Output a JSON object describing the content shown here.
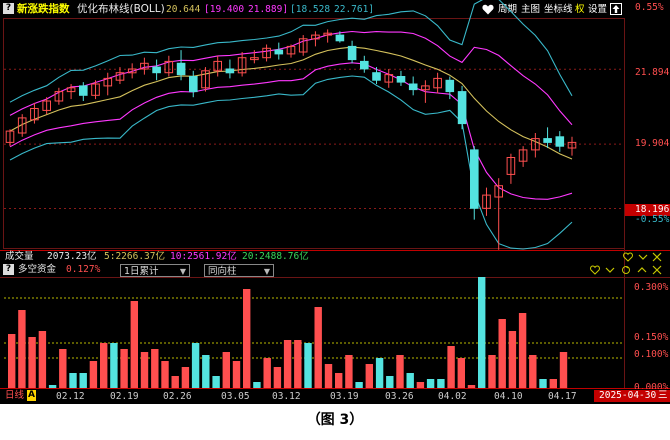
{
  "header": {
    "index_name": "新涨跌指数",
    "indicator_name": "优化布林线(BOLL)",
    "val_mid": "20.644",
    "val_upper_bracket": "[19.400",
    "val_upper2": "21.889]",
    "val_lower_bracket": "[18.528",
    "val_lower2": "22.761]",
    "btn_cycle": "周期",
    "btn_main": "主图",
    "btn_coord": "坐标线",
    "btn_right": "权",
    "btn_settings": "设置",
    "icon_names": [
      "heart-icon",
      "share-up-icon"
    ]
  },
  "price_axis": {
    "top_pct": "0.55%",
    "labels": [
      "21.894",
      "19.904"
    ],
    "last_value": "18.196",
    "last_pct": "-0.55%"
  },
  "volume_row": {
    "label": "成交量",
    "total": "2073.23亿",
    "ma5": "5:2266.37亿",
    "ma10": "10:2561.92亿",
    "ma20": "20:2488.76亿"
  },
  "sub_header": {
    "icon": "?",
    "label": "多空资金",
    "value": "0.127%",
    "dropdown1": "1日累计",
    "dropdown2": "同向柱"
  },
  "sub_axis": [
    "0.300%",
    "0.150%",
    "0.100%",
    "0.000%"
  ],
  "footer": {
    "period_tab": "日线",
    "dates": [
      "02.12",
      "02.19",
      "02.26",
      "03.05",
      "03.12",
      "03.19",
      "03.26",
      "04.02",
      "04.10",
      "04.17"
    ],
    "current_date": "2025-04-30",
    "current_sep": "三"
  },
  "colors": {
    "up": "#ff4f4f",
    "down": "#54e3e0",
    "mid_line": "#d4c15c",
    "inner_band": "#ff38ff",
    "outer_band": "#39b8c9",
    "grid": "#8b1a1a",
    "yellow_dash": "#b8b800"
  },
  "chart_data": [
    {
      "type": "candlestick",
      "title": "",
      "series": [
        {
          "name": "新涨跌指数",
          "ohlc": [
            [
              19.95,
              20.3,
              19.85,
              20.25
            ],
            [
              20.2,
              20.7,
              20.1,
              20.6
            ],
            [
              20.55,
              21.0,
              20.45,
              20.85
            ],
            [
              20.8,
              21.15,
              20.7,
              21.05
            ],
            [
              21.05,
              21.4,
              20.95,
              21.3
            ],
            [
              21.3,
              21.5,
              21.1,
              21.4
            ],
            [
              21.45,
              21.55,
              21.05,
              21.2
            ],
            [
              21.2,
              21.6,
              21.1,
              21.5
            ],
            [
              21.45,
              21.8,
              21.2,
              21.65
            ],
            [
              21.6,
              21.95,
              21.5,
              21.8
            ],
            [
              21.8,
              22.05,
              21.65,
              21.9
            ],
            [
              21.9,
              22.2,
              21.75,
              22.05
            ],
            [
              21.95,
              22.15,
              21.6,
              21.8
            ],
            [
              21.8,
              22.25,
              21.7,
              22.1
            ],
            [
              22.05,
              22.4,
              21.6,
              21.75
            ],
            [
              21.7,
              21.85,
              21.15,
              21.3
            ],
            [
              21.4,
              21.95,
              21.3,
              21.85
            ],
            [
              21.85,
              22.25,
              21.7,
              22.1
            ],
            [
              21.9,
              22.15,
              21.65,
              21.8
            ],
            [
              21.8,
              22.35,
              21.7,
              22.2
            ],
            [
              22.15,
              22.4,
              22.05,
              22.2
            ],
            [
              22.2,
              22.55,
              22.1,
              22.45
            ],
            [
              22.4,
              22.6,
              22.15,
              22.3
            ],
            [
              22.3,
              22.55,
              22.2,
              22.5
            ],
            [
              22.35,
              22.8,
              22.25,
              22.7
            ],
            [
              22.7,
              22.9,
              22.5,
              22.8
            ],
            [
              22.8,
              22.95,
              22.6,
              22.85
            ],
            [
              22.8,
              22.9,
              22.6,
              22.65
            ],
            [
              22.5,
              22.65,
              22.05,
              22.15
            ],
            [
              22.1,
              22.25,
              21.8,
              21.9
            ],
            [
              21.8,
              21.95,
              21.5,
              21.6
            ],
            [
              21.55,
              21.9,
              21.4,
              21.75
            ],
            [
              21.7,
              21.85,
              21.45,
              21.55
            ],
            [
              21.5,
              21.7,
              21.2,
              21.35
            ],
            [
              21.35,
              21.6,
              21.0,
              21.45
            ],
            [
              21.4,
              21.8,
              21.25,
              21.65
            ],
            [
              21.6,
              21.7,
              21.1,
              21.3
            ],
            [
              21.3,
              21.45,
              20.3,
              20.45
            ],
            [
              19.75,
              19.85,
              17.9,
              18.2
            ],
            [
              18.2,
              18.75,
              18.0,
              18.55
            ],
            [
              18.5,
              19.0,
              17.1,
              18.8
            ],
            [
              19.1,
              19.65,
              18.85,
              19.55
            ],
            [
              19.45,
              19.85,
              19.3,
              19.75
            ],
            [
              19.75,
              20.2,
              19.55,
              20.05
            ],
            [
              20.05,
              20.35,
              19.8,
              19.95
            ],
            [
              20.1,
              20.25,
              19.7,
              19.85
            ],
            [
              19.8,
              20.1,
              19.6,
              19.95
            ]
          ]
        }
      ],
      "ylim": [
        17.2,
        23.2
      ]
    },
    {
      "type": "bar",
      "title": "",
      "values": [
        0.18,
        0.26,
        0.17,
        0.19,
        0.01,
        0.13,
        0.05,
        0.05,
        0.09,
        0.15,
        0.15,
        0.13,
        0.29,
        0.12,
        0.13,
        0.09,
        0.04,
        0.07,
        0.15,
        0.11,
        0.04,
        0.12,
        0.09,
        0.33,
        0.02,
        0.1,
        0.07,
        0.16,
        0.16,
        0.15,
        0.27,
        0.08,
        0.05,
        0.11,
        0.02,
        0.08,
        0.1,
        0.04,
        0.11,
        0.05,
        0.02,
        0.03,
        0.03,
        0.14,
        0.1,
        0.01,
        0.37,
        0.11,
        0.23,
        0.19,
        0.25,
        0.11,
        0.03,
        0.03,
        0.12
      ],
      "colors": [
        "up",
        "up",
        "up",
        "up",
        "down",
        "up",
        "down",
        "down",
        "up",
        "up",
        "down",
        "up",
        "up",
        "up",
        "up",
        "up",
        "up",
        "up",
        "down",
        "down",
        "down",
        "up",
        "up",
        "up",
        "down",
        "up",
        "up",
        "up",
        "up",
        "down",
        "up",
        "up",
        "up",
        "up",
        "down",
        "up",
        "down",
        "down",
        "up",
        "down",
        "up",
        "down",
        "down",
        "up",
        "up",
        "up",
        "down",
        "up",
        "up",
        "up",
        "up",
        "up",
        "down",
        "up",
        "up"
      ],
      "ylim": [
        0,
        0.36
      ]
    }
  ]
}
